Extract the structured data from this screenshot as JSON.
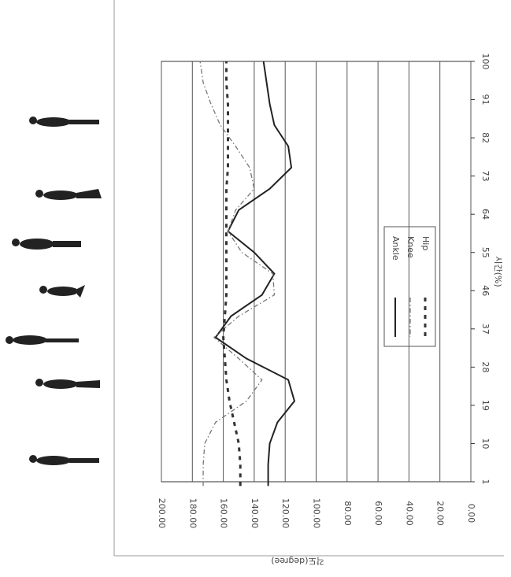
{
  "chart_data": {
    "type": "line",
    "x_label": "시간(%)",
    "y_label": "각도(degree)",
    "x": [
      0,
      5,
      10,
      15,
      20,
      25,
      30,
      35,
      40,
      45,
      50,
      55,
      60,
      65,
      70,
      75,
      80,
      85,
      90,
      95,
      100
    ],
    "series": [
      {
        "name": "Ankle",
        "color": "#222222",
        "style": "solid",
        "values": [
          131,
          131,
          130,
          125,
          114,
          118,
          145,
          165,
          155,
          135,
          127,
          140,
          157,
          150,
          130,
          116,
          118,
          127,
          130,
          132,
          134
        ]
      },
      {
        "name": "Knee",
        "color": "#777777",
        "style": "dashdot",
        "values": [
          173,
          173,
          172,
          165,
          145,
          135,
          150,
          166,
          150,
          127,
          128,
          148,
          157,
          152,
          140,
          143,
          152,
          162,
          168,
          173,
          175
        ]
      },
      {
        "name": "Hip",
        "color": "#333333",
        "style": "dashed",
        "values": [
          149,
          149,
          150,
          153,
          156,
          158,
          159,
          160,
          159,
          158,
          158,
          158,
          158,
          158,
          158,
          157,
          157,
          157,
          157,
          158,
          158
        ]
      }
    ],
    "xlim": [
      1,
      100
    ],
    "xticks": [
      1,
      10,
      19,
      28,
      37,
      46,
      55,
      64,
      73,
      82,
      91,
      100
    ],
    "ylim": [
      0,
      200
    ],
    "yticks": [
      {
        "value": 200,
        "label": "200.00"
      },
      {
        "value": 180,
        "label": "180.00"
      },
      {
        "value": 160,
        "label": "160.00"
      },
      {
        "value": 140,
        "label": "140.00"
      },
      {
        "value": 120,
        "label": "120.00"
      },
      {
        "value": 100,
        "label": "100.00"
      },
      {
        "value": 80,
        "label": "80.00"
      },
      {
        "value": 60,
        "label": "60.00"
      },
      {
        "value": 40,
        "label": "40.00"
      },
      {
        "value": 20,
        "label": "20.00"
      },
      {
        "value": 0,
        "label": "0.00"
      }
    ],
    "grid": true
  }
}
